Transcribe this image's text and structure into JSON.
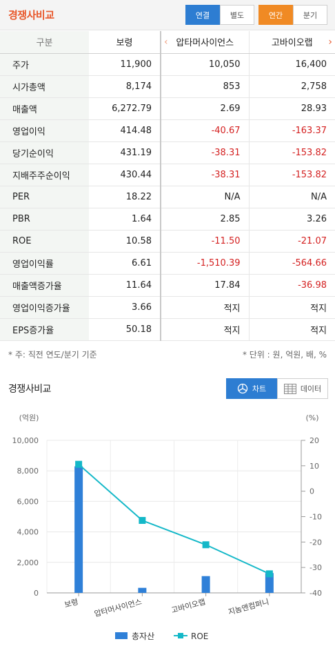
{
  "header": {
    "title": "경쟁사비교",
    "consolidation": [
      {
        "label": "연결",
        "active": true
      },
      {
        "label": "별도",
        "active": false
      }
    ],
    "period": [
      {
        "label": "연간",
        "active": true
      },
      {
        "label": "분기",
        "active": false
      }
    ]
  },
  "table": {
    "columns": [
      "구분",
      "보령",
      "압타머사이언스",
      "고바이오랩"
    ],
    "rows": [
      {
        "label": "주가",
        "values": [
          "11,900",
          "10,050",
          "16,400"
        ]
      },
      {
        "label": "시가총액",
        "values": [
          "8,174",
          "853",
          "2,758"
        ]
      },
      {
        "label": "매출액",
        "values": [
          "6,272.79",
          "2.69",
          "28.93"
        ]
      },
      {
        "label": "영업이익",
        "values": [
          "414.48",
          "-40.67",
          "-163.37"
        ]
      },
      {
        "label": "당기순이익",
        "values": [
          "431.19",
          "-38.31",
          "-153.82"
        ]
      },
      {
        "label": "지배주주순이익",
        "values": [
          "430.44",
          "-38.31",
          "-153.82"
        ]
      },
      {
        "label": "PER",
        "values": [
          "18.22",
          "N/A",
          "N/A"
        ]
      },
      {
        "label": "PBR",
        "values": [
          "1.64",
          "2.85",
          "3.26"
        ]
      },
      {
        "label": "ROE",
        "values": [
          "10.58",
          "-11.50",
          "-21.07"
        ]
      },
      {
        "label": "영업이익률",
        "values": [
          "6.61",
          "-1,510.39",
          "-564.66"
        ]
      },
      {
        "label": "매출액증가율",
        "values": [
          "11.64",
          "17.84",
          "-36.98"
        ]
      },
      {
        "label": "영업이익증가율",
        "values": [
          "3.66",
          "적지",
          "적지"
        ]
      },
      {
        "label": "EPS증가율",
        "values": [
          "50.18",
          "적지",
          "적지"
        ]
      }
    ]
  },
  "notes": {
    "left": "* 주: 직전 연도/분기 기준",
    "right": "* 단위 : 원, 억원, 배, %"
  },
  "section": {
    "title": "경쟁사비교",
    "tab_chart": "차트",
    "tab_data": "데이터"
  },
  "icons": {
    "prev": "chevron-left-icon",
    "next": "chevron-right-icon",
    "chart": "pie-chart-icon",
    "data": "table-grid-icon"
  },
  "colors": {
    "accent_orange": "#e8572a",
    "blue": "#2d7dd2",
    "bar": "#2f80d8",
    "line": "#14b8c8",
    "negative": "#d42020"
  },
  "chart_data": {
    "type": "bar",
    "categories": [
      "보령",
      "압타머사이언스",
      "고바이오랩",
      "지놈앤컴퍼니"
    ],
    "series": [
      {
        "name": "총자산",
        "type": "bar",
        "axis": "left",
        "values": [
          8300,
          330,
          1100,
          1300
        ]
      },
      {
        "name": "ROE",
        "type": "line",
        "axis": "right",
        "values": [
          10.58,
          -11.5,
          -21.07,
          -32.5
        ]
      }
    ],
    "y_left": {
      "label": "(억원)",
      "min": 0,
      "max": 10000,
      "ticks": [
        "0",
        "2,000",
        "4,000",
        "6,000",
        "8,000",
        "10,000"
      ]
    },
    "y_right": {
      "label": "(%)",
      "min": -40,
      "max": 20,
      "ticks": [
        "-40",
        "-30",
        "-20",
        "-10",
        "0",
        "10",
        "20"
      ]
    },
    "legend_position": "bottom",
    "grid": true
  }
}
